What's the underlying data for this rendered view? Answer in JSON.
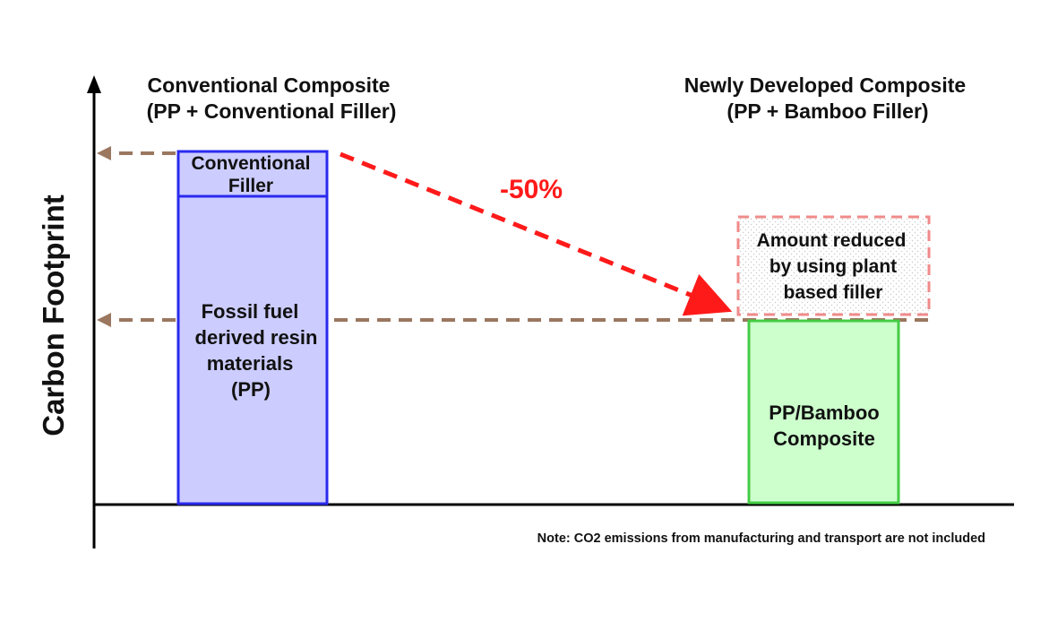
{
  "y_axis_label": "Carbon Footprint",
  "left_header": {
    "line1": "Conventional Composite",
    "line2": "(PP + Conventional Filler)"
  },
  "right_header": {
    "line1": "Newly Developed Composite",
    "line2": "(PP + Bamboo Filler)"
  },
  "left_bar": {
    "filler_line1": "Conventional",
    "filler_line2": "Filler",
    "resin_line1": "Fossil fuel",
    "resin_line2": "derived resin",
    "resin_line3": "materials",
    "resin_line4": "(PP)",
    "resin_color": "#ccccff",
    "border_color": "#2a2aee"
  },
  "right_bar": {
    "line1": "PP/Bamboo",
    "line2": "Composite",
    "fill_color": "#ccffcc",
    "border_color": "#44cc44"
  },
  "reduced_box": {
    "line1": "Amount reduced",
    "line2": "by using plant",
    "line3": "based filler",
    "border_color": "#f08a8a"
  },
  "reduction": {
    "label": "-50%",
    "color": "#ff1a1a"
  },
  "guide_color": "#9b7760",
  "note": "Note: CO2 emissions from manufacturing and transport are not included"
}
